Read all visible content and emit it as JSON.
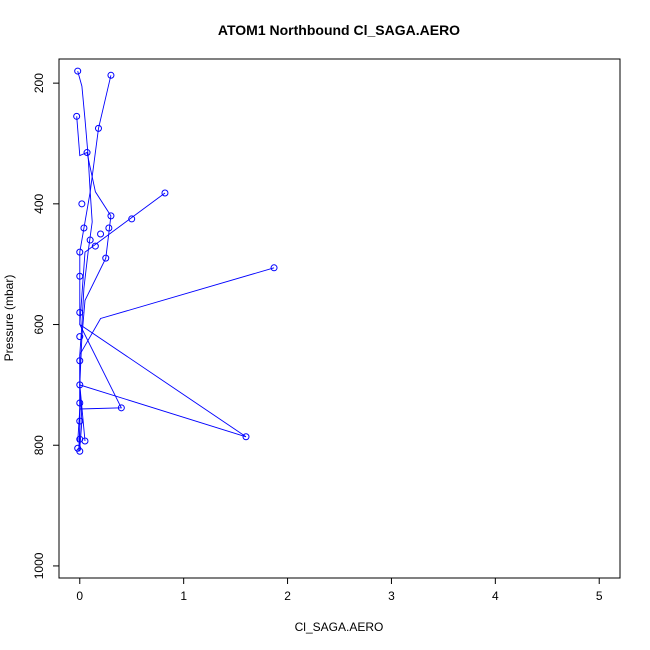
{
  "chart_data": {
    "type": "line",
    "title": "ATOM1 Northbound Cl_SAGA.AERO",
    "xlabel": "Cl_SAGA.AERO",
    "ylabel": "Pressure (mbar)",
    "xlim": [
      -0.2,
      5.2
    ],
    "ylim": [
      1020,
      160
    ],
    "y_reversed": true,
    "x_ticks": [
      0,
      1,
      2,
      3,
      4,
      5
    ],
    "y_ticks": [
      200,
      400,
      600,
      800,
      1000
    ],
    "grid": false,
    "line_color": "#0000ff",
    "series": [
      {
        "points": [
          [
            -0.02,
            180
          ],
          [
            0.02,
            205
          ],
          [
            0.05,
            260
          ],
          [
            0.08,
            320
          ],
          [
            0.1,
            380
          ],
          [
            0.12,
            430
          ],
          [
            0.08,
            480
          ],
          [
            0.04,
            540
          ],
          [
            0.02,
            600
          ],
          [
            0.0,
            650
          ],
          [
            0.0,
            700
          ],
          [
            0.02,
            760
          ],
          [
            0.0,
            805
          ]
        ]
      },
      {
        "points": [
          [
            -0.03,
            255
          ],
          [
            0.0,
            320
          ],
          [
            0.07,
            315
          ],
          [
            0.15,
            380
          ],
          [
            0.3,
            420
          ],
          [
            0.25,
            490
          ],
          [
            0.05,
            560
          ],
          [
            0.02,
            620
          ],
          [
            0.0,
            700
          ],
          [
            0.0,
            770
          ],
          [
            -0.01,
            810
          ]
        ]
      },
      {
        "points": [
          [
            0.3,
            187
          ],
          [
            0.18,
            275
          ],
          [
            0.1,
            380
          ],
          [
            0.0,
            480
          ],
          [
            0.0,
            600
          ],
          [
            0.4,
            738
          ],
          [
            0.0,
            740
          ],
          [
            -0.02,
            795
          ]
        ]
      },
      {
        "points": [
          [
            0.82,
            382
          ],
          [
            0.05,
            480
          ],
          [
            0.0,
            600
          ],
          [
            1.6,
            786
          ],
          [
            0.0,
            700
          ],
          [
            0.05,
            793
          ]
        ]
      },
      {
        "points": [
          [
            1.87,
            506
          ],
          [
            0.2,
            590
          ],
          [
            0.0,
            650
          ],
          [
            0.0,
            700
          ],
          [
            0.0,
            760
          ],
          [
            0.0,
            810
          ]
        ]
      }
    ],
    "markers": [
      [
        -0.02,
        180
      ],
      [
        -0.03,
        255
      ],
      [
        0.3,
        187
      ],
      [
        0.18,
        275
      ],
      [
        0.07,
        315
      ],
      [
        0.82,
        382
      ],
      [
        0.3,
        420
      ],
      [
        0.25,
        490
      ],
      [
        0.5,
        425
      ],
      [
        1.87,
        506
      ],
      [
        0.4,
        738
      ],
      [
        1.6,
        786
      ],
      [
        0.05,
        793
      ],
      [
        0.0,
        480
      ],
      [
        0.0,
        520
      ],
      [
        0.0,
        580
      ],
      [
        0.0,
        620
      ],
      [
        0.0,
        660
      ],
      [
        0.0,
        700
      ],
      [
        0.0,
        730
      ],
      [
        0.0,
        760
      ],
      [
        0.0,
        790
      ],
      [
        -0.02,
        805
      ],
      [
        0.0,
        810
      ],
      [
        0.02,
        400
      ],
      [
        0.04,
        440
      ],
      [
        0.1,
        460
      ],
      [
        0.15,
        470
      ],
      [
        0.2,
        450
      ],
      [
        0.28,
        440
      ]
    ]
  }
}
